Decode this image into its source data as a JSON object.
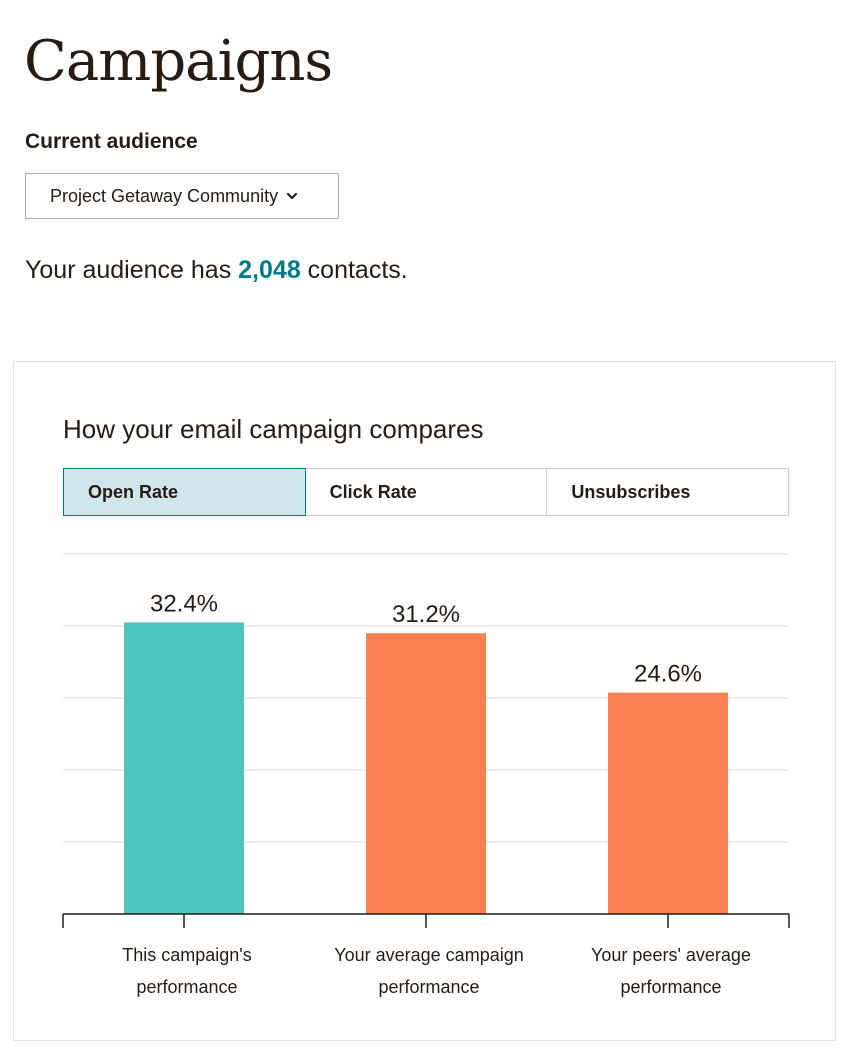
{
  "page": {
    "title": "Campaigns"
  },
  "audience": {
    "label": "Current audience",
    "selected": "Project Getaway Community",
    "dropdown_icon": "chevron-down-icon",
    "contacts_prefix": "Your audience has",
    "contacts_count": "2,048",
    "contacts_suffix": "contacts."
  },
  "comparison": {
    "title": "How your email campaign compares",
    "tabs": [
      {
        "label": "Open Rate",
        "active": true
      },
      {
        "label": "Click Rate",
        "active": false
      },
      {
        "label": "Unsubscribes",
        "active": false
      }
    ]
  },
  "colors": {
    "accent": "#007c89",
    "campaign_bar": "#4dc5c1",
    "comparison_bar": "#f88052",
    "active_tab_bg": "#cfe6ea"
  },
  "chart_data": {
    "type": "bar",
    "categories": [
      [
        "This campaign's",
        "performance"
      ],
      [
        "Your average campaign",
        "performance"
      ],
      [
        "Your peers' average",
        "performance"
      ]
    ],
    "values": [
      32.4,
      31.2,
      24.6
    ],
    "value_labels": [
      "32.4%",
      "31.2%",
      "24.6%"
    ],
    "bar_colors": [
      "#4dc5c1",
      "#f88052",
      "#f88052"
    ],
    "ylim": [
      0,
      40
    ],
    "grid": true,
    "legend": "none"
  }
}
